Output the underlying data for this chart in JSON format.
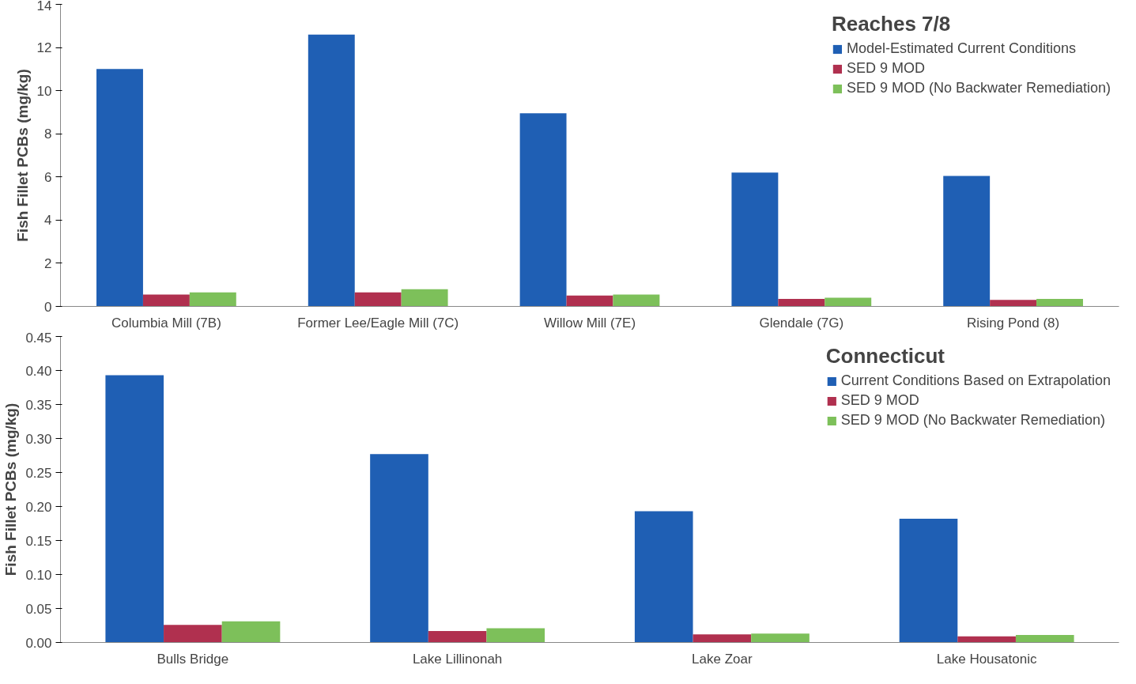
{
  "chart_data": [
    {
      "type": "bar",
      "legend_title": "Reaches 7/8",
      "ylabel": "Fish Fillet PCBs (mg/kg)",
      "categories": [
        "Columbia Mill (7B)",
        "Former Lee/Eagle Mill (7C)",
        "Willow Mill (7E)",
        "Glendale (7G)",
        "Rising Pond (8)"
      ],
      "series": [
        {
          "name": "Model-Estimated Current Conditions",
          "color": "#1f5fb4",
          "values": [
            11.0,
            12.6,
            8.95,
            6.2,
            6.05
          ]
        },
        {
          "name": "SED 9 MOD",
          "color": "#b0304f",
          "values": [
            0.55,
            0.65,
            0.5,
            0.35,
            0.3
          ]
        },
        {
          "name": "SED 9 MOD (No Backwater Remediation)",
          "color": "#7dc05a",
          "values": [
            0.65,
            0.8,
            0.55,
            0.4,
            0.35
          ]
        }
      ],
      "ylim": [
        0,
        14
      ],
      "yticks": [
        0,
        2,
        4,
        6,
        8,
        10,
        12,
        14
      ],
      "grid": false,
      "legend": "top right"
    },
    {
      "type": "bar",
      "legend_title": "Connecticut",
      "ylabel": "Fish Fillet PCBs (mg/kg)",
      "categories": [
        "Bulls Bridge",
        "Lake Lillinonah",
        "Lake Zoar",
        "Lake Housatonic"
      ],
      "series": [
        {
          "name": "Current Conditions Based on Extrapolation",
          "color": "#1f5fb4",
          "values": [
            0.393,
            0.277,
            0.193,
            0.182
          ]
        },
        {
          "name": "SED 9 MOD",
          "color": "#b0304f",
          "values": [
            0.026,
            0.017,
            0.012,
            0.009
          ]
        },
        {
          "name": "SED 9 MOD (No Backwater Remediation)",
          "color": "#7dc05a",
          "values": [
            0.031,
            0.021,
            0.013,
            0.011
          ]
        }
      ],
      "ylim": [
        0,
        0.45
      ],
      "yticks": [
        {
          "value": 0,
          "label": "0.00"
        },
        {
          "value": 0.05,
          "label": "0.05"
        },
        {
          "value": 0.1,
          "label": "0.10"
        },
        {
          "value": 0.15,
          "label": "0.15"
        },
        {
          "value": 0.2,
          "label": "0.20"
        },
        {
          "value": 0.25,
          "label": "0.25"
        },
        {
          "value": 0.3,
          "label": "0.30"
        },
        {
          "value": 0.35,
          "label": "0.35"
        },
        {
          "value": 0.4,
          "label": "0.40"
        },
        {
          "value": 0.45,
          "label": "0.45"
        }
      ],
      "grid": false,
      "legend": "top right"
    }
  ]
}
